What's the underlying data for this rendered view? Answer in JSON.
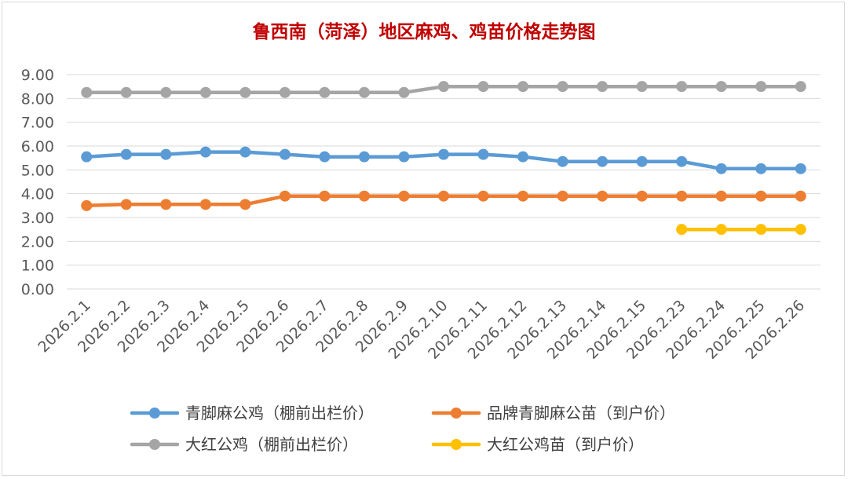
{
  "colors": {
    "title": "#c00000",
    "grid": "#d9d9d9",
    "tick_text": "#595959",
    "legend_text": "#404040"
  },
  "chart_data": {
    "type": "line",
    "title": "鲁西南（菏泽）地区麻鸡、鸡苗价格走势图",
    "xlabel": "",
    "ylabel": "",
    "ylim": [
      0,
      9
    ],
    "yticks": [
      "0.00",
      "1.00",
      "2.00",
      "3.00",
      "4.00",
      "5.00",
      "6.00",
      "7.00",
      "8.00",
      "9.00"
    ],
    "grid": true,
    "legend_placement": "bottom",
    "categories": [
      "2026.2.1",
      "2026.2.2",
      "2026.2.3",
      "2026.2.4",
      "2026.2.5",
      "2026.2.6",
      "2026.2.7",
      "2026.2.8",
      "2026.2.9",
      "2026.2.10",
      "2026.2.11",
      "2026.2.12",
      "2026.2.13",
      "2026.2.14",
      "2026.2.15",
      "2026.2.23",
      "2026.2.24",
      "2026.2.25",
      "2026.2.26"
    ],
    "series": [
      {
        "name": "青脚麻公鸡（棚前出栏价）",
        "color": "#5b9bd5",
        "values": [
          5.55,
          5.65,
          5.65,
          5.75,
          5.75,
          5.65,
          5.55,
          5.55,
          5.55,
          5.65,
          5.65,
          5.55,
          5.35,
          5.35,
          5.35,
          5.35,
          5.05,
          5.05,
          5.05
        ]
      },
      {
        "name": "品牌青脚麻公苗（到户价）",
        "color": "#ed7d31",
        "values": [
          3.5,
          3.55,
          3.55,
          3.55,
          3.55,
          3.9,
          3.9,
          3.9,
          3.9,
          3.9,
          3.9,
          3.9,
          3.9,
          3.9,
          3.9,
          3.9,
          3.9,
          3.9,
          3.9
        ]
      },
      {
        "name": "大红公鸡（棚前出栏价）",
        "color": "#a5a5a5",
        "values": [
          8.25,
          8.25,
          8.25,
          8.25,
          8.25,
          8.25,
          8.25,
          8.25,
          8.25,
          8.5,
          8.5,
          8.5,
          8.5,
          8.5,
          8.5,
          8.5,
          8.5,
          8.5,
          8.5
        ]
      },
      {
        "name": "大红公鸡苗（到户价）",
        "color": "#ffc000",
        "values": [
          null,
          null,
          null,
          null,
          null,
          null,
          null,
          null,
          null,
          null,
          null,
          null,
          null,
          null,
          null,
          2.5,
          2.5,
          2.5,
          2.5
        ]
      }
    ]
  }
}
